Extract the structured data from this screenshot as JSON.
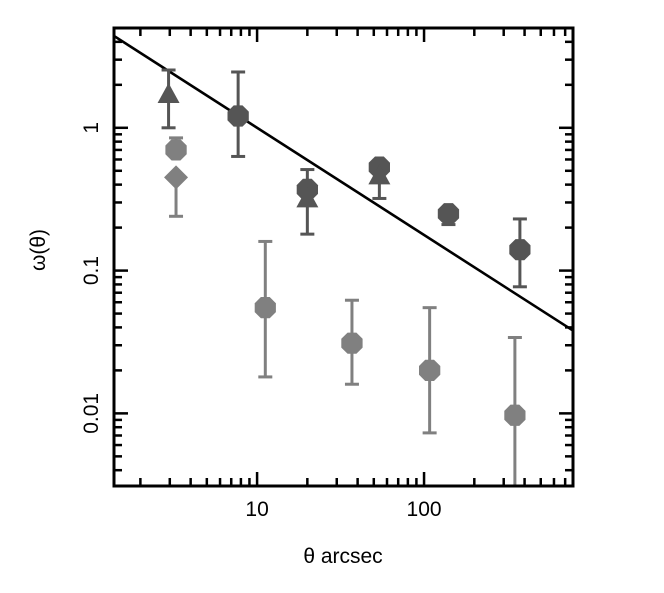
{
  "chart_data": {
    "type": "scatter",
    "title": "",
    "xlabel": "θ arcsec",
    "ylabel": "ω(θ)",
    "xscale": "log",
    "yscale": "log",
    "xlim": [
      1.39,
      780
    ],
    "ylim": [
      0.0031,
      5.0
    ],
    "xticks": [
      {
        "value": 10,
        "label": "10"
      },
      {
        "value": 100,
        "label": "100"
      }
    ],
    "yticks": [
      {
        "value": 1,
        "label": "1"
      },
      {
        "value": 0.1,
        "label": "0.1"
      },
      {
        "value": 0.01,
        "label": "0.01"
      }
    ],
    "grid": false,
    "legend": null,
    "colors": {
      "dark": "#555555",
      "light": "#808080",
      "line": "#000000",
      "frame": "#000000"
    },
    "series": [
      {
        "name": "dark hexagons",
        "marker": "hexagon",
        "color": "#555555",
        "points": [
          {
            "x": 7.7,
            "y": 1.21,
            "ylo": 0.63,
            "yhi": 2.46
          },
          {
            "x": 20,
            "y": 0.37,
            "ylo": 0.18,
            "yhi": 0.51
          },
          {
            "x": 54,
            "y": 0.53,
            "ylo": 0.32,
            "yhi": null
          },
          {
            "x": 140,
            "y": 0.25,
            "ylo": 0.21,
            "yhi": null
          },
          {
            "x": 375,
            "y": 0.14,
            "ylo": 0.077,
            "yhi": 0.23
          }
        ]
      },
      {
        "name": "dark triangles",
        "marker": "triangle",
        "color": "#555555",
        "points": [
          {
            "x": 2.95,
            "y": 1.67,
            "ylo": 1.0,
            "yhi": 2.54
          },
          {
            "x": 20,
            "y": 0.31,
            "ylo": null,
            "yhi": null
          },
          {
            "x": 54,
            "y": 0.45,
            "ylo": null,
            "yhi": null
          }
        ]
      },
      {
        "name": "light hexagons",
        "marker": "hexagon",
        "color": "#808080",
        "points": [
          {
            "x": 3.27,
            "y": 0.7,
            "ylo": null,
            "yhi": 0.85
          },
          {
            "x": 11.2,
            "y": 0.055,
            "ylo": 0.018,
            "yhi": 0.16
          },
          {
            "x": 37,
            "y": 0.031,
            "ylo": 0.016,
            "yhi": 0.062
          },
          {
            "x": 108,
            "y": 0.02,
            "ylo": 0.0073,
            "yhi": 0.055
          },
          {
            "x": 350,
            "y": 0.0097,
            "ylo": 0.0031,
            "yhi": 0.034
          }
        ]
      },
      {
        "name": "light diamonds",
        "marker": "diamond",
        "color": "#808080",
        "points": [
          {
            "x": 3.27,
            "y": 0.45,
            "ylo": 0.24,
            "yhi": null
          }
        ]
      }
    ],
    "lines": [
      {
        "name": "power-law fit",
        "color": "#000000",
        "x": [
          1.39,
          780
        ],
        "y": [
          4.4,
          0.038
        ]
      }
    ]
  }
}
